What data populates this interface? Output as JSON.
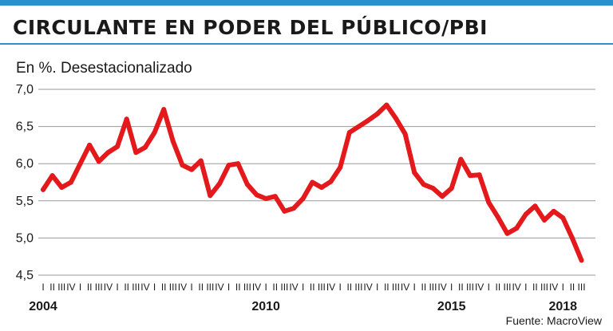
{
  "header": {
    "title": "CIRCULANTE EN PODER DEL PÚBLICO/PBI",
    "unit_label": "En %. Desestacionalizado",
    "source": "Fuente: MacroView",
    "accent_color": "#2e8fd0"
  },
  "chart_data": {
    "type": "line",
    "title": "CIRCULANTE EN PODER DEL PÚBLICO/PBI",
    "xlabel": "",
    "ylabel": "",
    "ylim": [
      4.5,
      7.0
    ],
    "y_ticks": [
      "7,0",
      "6,5",
      "6,0",
      "5,5",
      "5,0",
      "4,5"
    ],
    "y_tick_values": [
      7.0,
      6.5,
      6.0,
      5.5,
      5.0,
      4.5
    ],
    "x_quarter_labels": [
      "I",
      "II",
      "III",
      "IV"
    ],
    "x_year_labels": [
      {
        "label": "2004",
        "quarter_index": 0
      },
      {
        "label": "2010",
        "quarter_index": 24
      },
      {
        "label": "2015",
        "quarter_index": 44
      },
      {
        "label": "2018",
        "quarter_index": 56
      }
    ],
    "grid": true,
    "line_color": "#e3191c",
    "series": [
      {
        "values": [
          5.65,
          5.84,
          5.68,
          5.75,
          6.0,
          6.25,
          6.03,
          6.15,
          6.23,
          6.6,
          6.15,
          6.22,
          6.42,
          6.73,
          6.3,
          5.98,
          5.92,
          6.04,
          5.57,
          5.73,
          5.98,
          6.0,
          5.72,
          5.58,
          5.53,
          5.56,
          5.36,
          5.4,
          5.53,
          5.75,
          5.68,
          5.76,
          5.95,
          6.42,
          6.5,
          6.58,
          6.67,
          6.79,
          6.61,
          6.4,
          5.88,
          5.72,
          5.67,
          5.56,
          5.67,
          6.06,
          5.84,
          5.85,
          5.48,
          5.28,
          5.06,
          5.13,
          5.32,
          5.43,
          5.24,
          5.36,
          5.27,
          5.0,
          4.7
        ]
      }
    ]
  }
}
